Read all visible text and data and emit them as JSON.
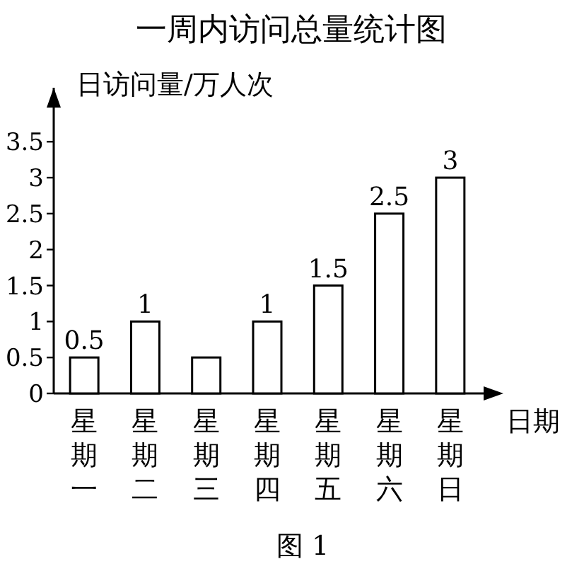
{
  "chart_data": {
    "type": "bar",
    "title": "一周内访问总量统计图",
    "xlabel": "日期",
    "ylabel": "日访问量/万人次",
    "categories": [
      "星期一",
      "星期二",
      "星期三",
      "星期四",
      "星期五",
      "星期六",
      "星期日"
    ],
    "values": [
      0.5,
      1,
      0.5,
      1,
      1.5,
      2.5,
      3
    ],
    "value_labels": [
      "0.5",
      "1",
      null,
      "1",
      "1.5",
      "2.5",
      "3"
    ],
    "color": "#ffffff",
    "ylim": [
      0,
      4.25
    ],
    "yticks": [
      0,
      0.5,
      1,
      1.5,
      2,
      2.5,
      3,
      3.5
    ],
    "annotations": [
      "图 1"
    ]
  }
}
